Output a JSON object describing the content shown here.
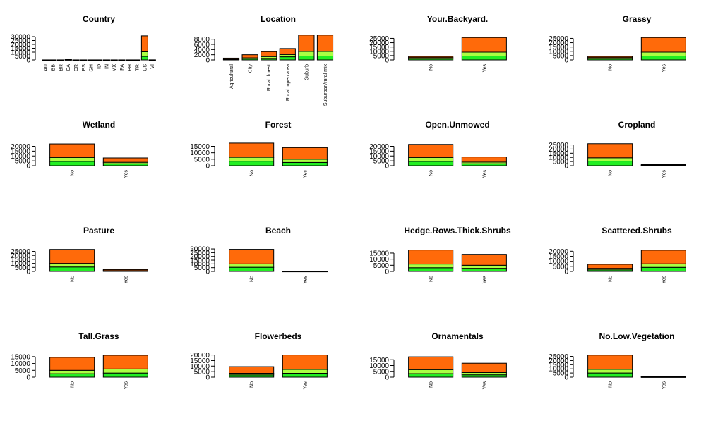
{
  "colors": {
    "lower": "#22ee22",
    "middle": "#aaff44",
    "upper": "#ff6a0a",
    "outline": "#000000"
  },
  "chart_data": [
    {
      "type": "bar",
      "stacked": true,
      "title": "Country",
      "categories": [
        "AU",
        "BB",
        "BR",
        "CA",
        "CR",
        "ES",
        "GH",
        "ID",
        "IN",
        "MX",
        "PA",
        "PH",
        "TR",
        "US",
        "VI"
      ],
      "ylim": [
        0,
        30000
      ],
      "yticks": [
        0,
        5000,
        10000,
        15000,
        20000,
        25000,
        30000
      ],
      "series": [
        {
          "values": [
            10,
            10,
            10,
            200,
            10,
            10,
            10,
            10,
            10,
            10,
            10,
            10,
            10,
            4500,
            20
          ]
        },
        {
          "values": [
            10,
            10,
            10,
            200,
            10,
            10,
            10,
            10,
            10,
            10,
            10,
            10,
            10,
            6000,
            20
          ]
        },
        {
          "values": [
            10,
            10,
            10,
            300,
            10,
            10,
            10,
            10,
            10,
            10,
            10,
            10,
            10,
            20500,
            20
          ]
        }
      ]
    },
    {
      "type": "bar",
      "stacked": true,
      "title": "Location",
      "categories": [
        "Agricultural",
        "City",
        "Rural: forest",
        "Rural: open area",
        "Suburb",
        "Suburban/rural mix"
      ],
      "ylim": [
        0,
        9000
      ],
      "yticks": [
        0,
        2000,
        4000,
        6000,
        8000
      ],
      "series": [
        {
          "values": [
            200,
            400,
            600,
            1200,
            1500,
            1500
          ]
        },
        {
          "values": [
            200,
            400,
            700,
            900,
            1800,
            1800
          ]
        },
        {
          "values": [
            300,
            1200,
            1900,
            2300,
            6300,
            6300
          ]
        }
      ]
    },
    {
      "type": "bar",
      "stacked": true,
      "title": "Your.Backyard.",
      "categories": [
        "No",
        "Yes"
      ],
      "ylim": [
        0,
        27000
      ],
      "yticks": [
        0,
        5000,
        10000,
        15000,
        20000,
        25000
      ],
      "series": [
        {
          "values": [
            1500,
            4500
          ]
        },
        {
          "values": [
            1200,
            4500
          ]
        },
        {
          "values": [
            1300,
            17000
          ]
        }
      ]
    },
    {
      "type": "bar",
      "stacked": true,
      "title": "Grassy",
      "categories": [
        "No",
        "Yes"
      ],
      "ylim": [
        0,
        27000
      ],
      "yticks": [
        0,
        5000,
        10000,
        15000,
        20000,
        25000
      ],
      "series": [
        {
          "values": [
            1500,
            4500
          ]
        },
        {
          "values": [
            1200,
            4500
          ]
        },
        {
          "values": [
            1300,
            17000
          ]
        }
      ]
    },
    {
      "type": "bar",
      "stacked": true,
      "title": "Wetland",
      "categories": [
        "No",
        "Yes"
      ],
      "ylim": [
        0,
        24000
      ],
      "yticks": [
        0,
        5000,
        10000,
        15000,
        20000
      ],
      "series": [
        {
          "values": [
            4500,
            2000
          ]
        },
        {
          "values": [
            4000,
            1500
          ]
        },
        {
          "values": [
            14000,
            4500
          ]
        }
      ]
    },
    {
      "type": "bar",
      "stacked": true,
      "title": "Forest",
      "categories": [
        "No",
        "Yes"
      ],
      "ylim": [
        0,
        18000
      ],
      "yticks": [
        0,
        5000,
        10000,
        15000
      ],
      "series": [
        {
          "values": [
            3500,
            2500
          ]
        },
        {
          "values": [
            3000,
            2500
          ]
        },
        {
          "values": [
            11000,
            9000
          ]
        }
      ]
    },
    {
      "type": "bar",
      "stacked": true,
      "title": "Open.Unmowed",
      "categories": [
        "No",
        "Yes"
      ],
      "ylim": [
        0,
        24000
      ],
      "yticks": [
        0,
        5000,
        10000,
        15000,
        20000
      ],
      "series": [
        {
          "values": [
            4500,
            2000
          ]
        },
        {
          "values": [
            4000,
            1700
          ]
        },
        {
          "values": [
            13500,
            5300
          ]
        }
      ]
    },
    {
      "type": "bar",
      "stacked": true,
      "title": "Cropland",
      "categories": [
        "No",
        "Yes"
      ],
      "ylim": [
        0,
        28000
      ],
      "yticks": [
        0,
        5000,
        10000,
        15000,
        20000,
        25000
      ],
      "series": [
        {
          "values": [
            5500,
            500
          ]
        },
        {
          "values": [
            4000,
            300
          ]
        },
        {
          "values": [
            17000,
            800
          ]
        }
      ]
    },
    {
      "type": "bar",
      "stacked": true,
      "title": "Pasture",
      "categories": [
        "No",
        "Yes"
      ],
      "ylim": [
        0,
        29000
      ],
      "yticks": [
        0,
        5000,
        10000,
        15000,
        20000,
        25000
      ],
      "series": [
        {
          "values": [
            5500,
            500
          ]
        },
        {
          "values": [
            4500,
            500
          ]
        },
        {
          "values": [
            17500,
            1300
          ]
        }
      ]
    },
    {
      "type": "bar",
      "stacked": true,
      "title": "Beach",
      "categories": [
        "No",
        "Yes"
      ],
      "ylim": [
        0,
        31000
      ],
      "yticks": [
        0,
        5000,
        10000,
        15000,
        20000,
        25000,
        30000
      ],
      "series": [
        {
          "values": [
            5500,
            30
          ]
        },
        {
          "values": [
            4500,
            30
          ]
        },
        {
          "values": [
            19500,
            40
          ]
        }
      ]
    },
    {
      "type": "bar",
      "stacked": true,
      "title": "Hedge.Rows.Thick.Shrubs",
      "categories": [
        "No",
        "Yes"
      ],
      "ylim": [
        0,
        19000
      ],
      "yticks": [
        0,
        5000,
        10000,
        15000
      ],
      "series": [
        {
          "values": [
            3000,
            2500
          ]
        },
        {
          "values": [
            3000,
            2500
          ]
        },
        {
          "values": [
            11500,
            9000
          ]
        }
      ]
    },
    {
      "type": "bar",
      "stacked": true,
      "title": "Scattered.Shrubs",
      "categories": [
        "No",
        "Yes"
      ],
      "ylim": [
        0,
        23000
      ],
      "yticks": [
        0,
        5000,
        10000,
        15000,
        20000
      ],
      "series": [
        {
          "values": [
            1500,
            4000
          ]
        },
        {
          "values": [
            1500,
            3500
          ]
        },
        {
          "values": [
            4000,
            13500
          ]
        }
      ]
    },
    {
      "type": "bar",
      "stacked": true,
      "title": "Tall.Grass",
      "categories": [
        "No",
        "Yes"
      ],
      "ylim": [
        0,
        17000
      ],
      "yticks": [
        0,
        5000,
        10000,
        15000
      ],
      "series": [
        {
          "values": [
            2500,
            3000
          ]
        },
        {
          "values": [
            2500,
            3000
          ]
        },
        {
          "values": [
            9500,
            10000
          ]
        }
      ]
    },
    {
      "type": "bar",
      "stacked": true,
      "title": "Flowerbeds",
      "categories": [
        "No",
        "Yes"
      ],
      "ylim": [
        0,
        21000
      ],
      "yticks": [
        0,
        5000,
        10000,
        15000,
        20000
      ],
      "series": [
        {
          "values": [
            2000,
            3500
          ]
        },
        {
          "values": [
            1500,
            3500
          ]
        },
        {
          "values": [
            6000,
            13000
          ]
        }
      ]
    },
    {
      "type": "bar",
      "stacked": true,
      "title": "Ornamentals",
      "categories": [
        "No",
        "Yes"
      ],
      "ylim": [
        0,
        20000
      ],
      "yticks": [
        0,
        5000,
        10000,
        15000
      ],
      "series": [
        {
          "values": [
            3000,
            2000
          ]
        },
        {
          "values": [
            3500,
            2000
          ]
        },
        {
          "values": [
            11000,
            8000
          ]
        }
      ]
    },
    {
      "type": "bar",
      "stacked": true,
      "title": "No.Low.Vegetation",
      "categories": [
        "No",
        "Yes"
      ],
      "ylim": [
        0,
        28000
      ],
      "yticks": [
        0,
        5000,
        10000,
        15000,
        20000,
        25000
      ],
      "series": [
        {
          "values": [
            5000,
            200
          ]
        },
        {
          "values": [
            4500,
            200
          ]
        },
        {
          "values": [
            17000,
            400
          ]
        }
      ]
    }
  ]
}
